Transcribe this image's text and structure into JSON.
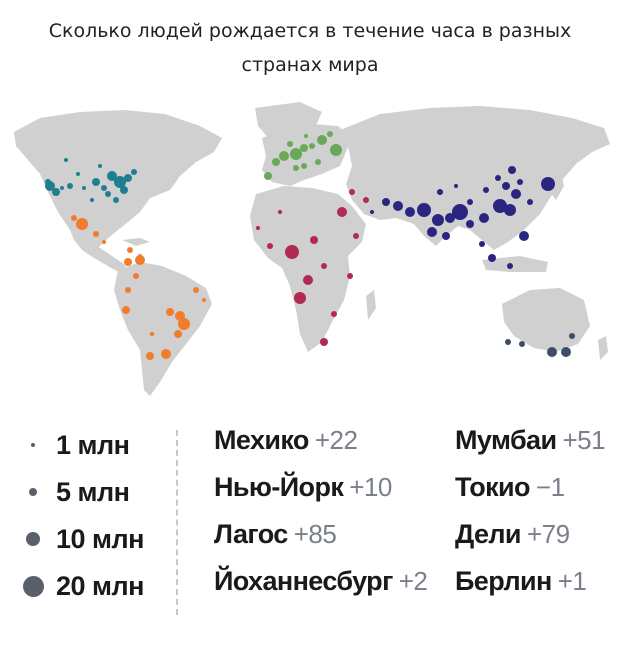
{
  "title": {
    "line1": "Сколько людей рождается в течение часа в разных",
    "line2": "странах мира"
  },
  "colors": {
    "north_america": "#1f7e8f",
    "latin_america": "#f07d2c",
    "europe": "#6aa85a",
    "africa_mideast": "#b02a52",
    "asia": "#2a2580",
    "oceania": "#3e4d66",
    "land": "#d0d0d0",
    "legend_dot": "#5a5f6c"
  },
  "scale": [
    {
      "label": "1 млн",
      "size": 1
    },
    {
      "label": "5 млн",
      "size": 5
    },
    {
      "label": "10 млн",
      "size": 10
    },
    {
      "label": "20 млн",
      "size": 20
    }
  ],
  "cities": [
    {
      "name": "Мехико",
      "delta": "+22"
    },
    {
      "name": "Нью-Йорк",
      "delta": "+10"
    },
    {
      "name": "Лагос",
      "delta": "+85"
    },
    {
      "name": "Йоханнесбург",
      "delta": "+2"
    },
    {
      "name": "Мумбаи",
      "delta": "+51"
    },
    {
      "name": "Токио",
      "delta": "−1"
    },
    {
      "name": "Дели",
      "delta": "+79"
    },
    {
      "name": "Берлин",
      "delta": "+1"
    }
  ]
}
